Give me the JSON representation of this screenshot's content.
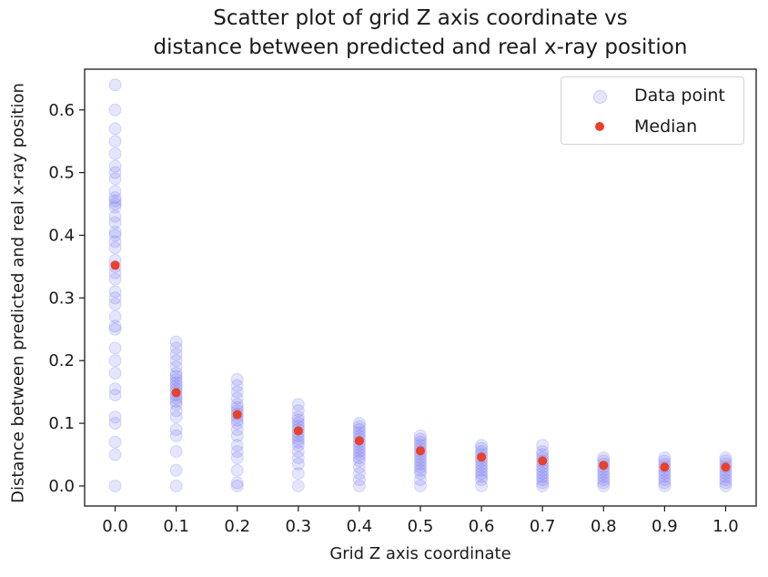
{
  "chart_data": {
    "type": "scatter",
    "title": [
      "Scatter plot of grid Z axis coordinate vs",
      "distance between predicted and real x-ray position"
    ],
    "xlabel": "Grid Z axis coordinate",
    "ylabel": "Distance between predicted and real x-ray position",
    "xlim": [
      -0.05,
      1.05
    ],
    "ylim": [
      -0.032,
      0.665
    ],
    "xticks": [
      "0.0",
      "0.1",
      "0.2",
      "0.3",
      "0.4",
      "0.5",
      "0.6",
      "0.7",
      "0.8",
      "0.9",
      "1.0"
    ],
    "yticks": [
      "0.0",
      "0.1",
      "0.2",
      "0.3",
      "0.4",
      "0.5",
      "0.6"
    ],
    "grid": false,
    "legend_position": "top-right",
    "colors": {
      "data_point": "#5a5af0",
      "median": "#e8412c"
    },
    "series": [
      {
        "name": "Data point",
        "points": [
          {
            "x": 0.0,
            "y": [
              0.0,
              0.05,
              0.07,
              0.1,
              0.11,
              0.145,
              0.155,
              0.18,
              0.2,
              0.22,
              0.25,
              0.255,
              0.27,
              0.29,
              0.3,
              0.31,
              0.33,
              0.34,
              0.35,
              0.36,
              0.38,
              0.39,
              0.4,
              0.405,
              0.42,
              0.43,
              0.445,
              0.45,
              0.455,
              0.46,
              0.47,
              0.49,
              0.5,
              0.51,
              0.53,
              0.55,
              0.57,
              0.6,
              0.64
            ]
          },
          {
            "x": 0.1,
            "y": [
              0.0,
              0.025,
              0.055,
              0.08,
              0.09,
              0.11,
              0.12,
              0.13,
              0.135,
              0.14,
              0.145,
              0.15,
              0.155,
              0.16,
              0.165,
              0.17,
              0.175,
              0.18,
              0.19,
              0.2,
              0.21,
              0.22,
              0.23
            ]
          },
          {
            "x": 0.2,
            "y": [
              0.0,
              0.005,
              0.025,
              0.045,
              0.055,
              0.065,
              0.08,
              0.09,
              0.1,
              0.105,
              0.11,
              0.115,
              0.12,
              0.125,
              0.13,
              0.14,
              0.15,
              0.16,
              0.17
            ]
          },
          {
            "x": 0.3,
            "y": [
              0.0,
              0.02,
              0.035,
              0.045,
              0.055,
              0.065,
              0.07,
              0.075,
              0.08,
              0.085,
              0.09,
              0.095,
              0.1,
              0.105,
              0.11,
              0.12,
              0.13
            ]
          },
          {
            "x": 0.4,
            "y": [
              0.0,
              0.01,
              0.02,
              0.03,
              0.04,
              0.045,
              0.05,
              0.055,
              0.06,
              0.065,
              0.07,
              0.075,
              0.08,
              0.085,
              0.09,
              0.095,
              0.1
            ]
          },
          {
            "x": 0.5,
            "y": [
              0.0,
              0.01,
              0.02,
              0.025,
              0.03,
              0.035,
              0.04,
              0.045,
              0.05,
              0.055,
              0.06,
              0.065,
              0.07,
              0.075,
              0.08
            ]
          },
          {
            "x": 0.6,
            "y": [
              0.0,
              0.01,
              0.015,
              0.02,
              0.025,
              0.03,
              0.035,
              0.04,
              0.045,
              0.05,
              0.055,
              0.06,
              0.065
            ]
          },
          {
            "x": 0.7,
            "y": [
              0.0,
              0.005,
              0.01,
              0.015,
              0.02,
              0.025,
              0.03,
              0.035,
              0.04,
              0.045,
              0.05,
              0.055,
              0.065
            ]
          },
          {
            "x": 0.8,
            "y": [
              0.0,
              0.005,
              0.01,
              0.015,
              0.02,
              0.025,
              0.03,
              0.035,
              0.04,
              0.045
            ]
          },
          {
            "x": 0.9,
            "y": [
              0.0,
              0.005,
              0.01,
              0.015,
              0.02,
              0.025,
              0.03,
              0.035,
              0.04,
              0.045
            ]
          },
          {
            "x": 1.0,
            "y": [
              0.0,
              0.005,
              0.01,
              0.015,
              0.02,
              0.025,
              0.03,
              0.035,
              0.04,
              0.045
            ]
          }
        ]
      },
      {
        "name": "Median",
        "x": [
          0.0,
          0.1,
          0.2,
          0.3,
          0.4,
          0.5,
          0.6,
          0.7,
          0.8,
          0.9,
          1.0
        ],
        "y": [
          0.352,
          0.149,
          0.114,
          0.088,
          0.072,
          0.056,
          0.046,
          0.04,
          0.033,
          0.03,
          0.03
        ]
      }
    ]
  }
}
